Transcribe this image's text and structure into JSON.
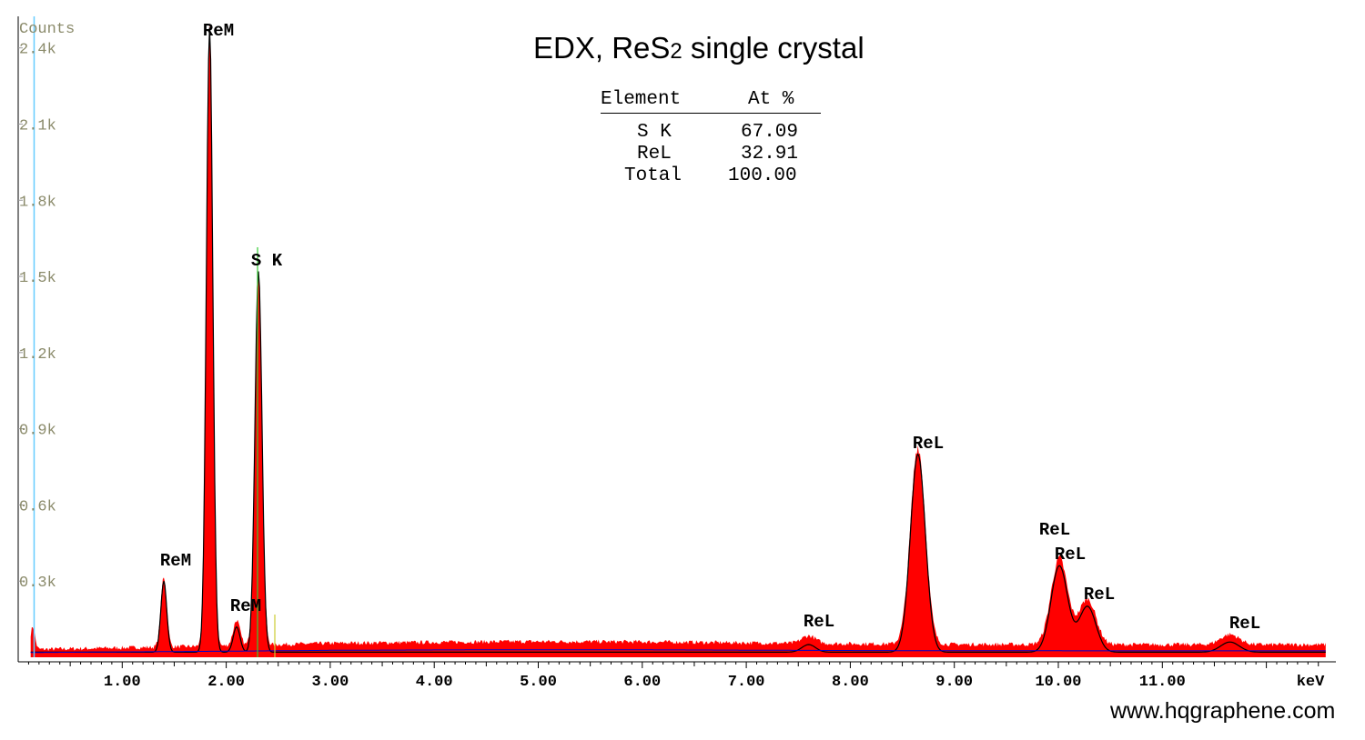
{
  "chart_data": {
    "type": "area",
    "title": "EDX, ReS",
    "title_subscript": "2",
    "title_suffix": " single crystal",
    "ylabel": "Counts",
    "xlabel": "keV",
    "x_range": [
      0.0,
      12.5
    ],
    "y_range": [
      0,
      2500
    ],
    "x_ticks": [
      "1.00",
      "2.00",
      "3.00",
      "4.00",
      "5.00",
      "6.00",
      "7.00",
      "8.00",
      "9.00",
      "10.00",
      "11.00"
    ],
    "y_ticks": [
      "0.3k",
      "0.6k",
      "0.9k",
      "1.2k",
      "1.5k",
      "1.8k",
      "2.1k",
      "2.4k"
    ],
    "colors": {
      "spectrum_fill": "#ff0000",
      "fit_line": "#000000",
      "background_line": "#0000cc",
      "axis": "#000000",
      "y_tick_text": "#8a8a6a",
      "cursor_line": "#66ccff",
      "marker_line": "#33cc33"
    },
    "peaks": [
      {
        "label": "ReM",
        "energy": 1.4,
        "counts": 320
      },
      {
        "label": "ReM",
        "energy": 1.84,
        "counts": 2500
      },
      {
        "label": "ReM",
        "energy": 2.1,
        "counts": 140
      },
      {
        "label": "S  K",
        "energy": 2.31,
        "counts": 1540
      },
      {
        "label": "ReL",
        "energy": 7.6,
        "counts": 70
      },
      {
        "label": "ReL",
        "energy": 8.65,
        "counts": 820
      },
      {
        "label": "ReL",
        "energy": 10.01,
        "counts": 380
      },
      {
        "label": "ReL",
        "energy": 10.01,
        "counts": 380
      },
      {
        "label": "ReL",
        "energy": 10.28,
        "counts": 220
      },
      {
        "label": "ReL",
        "energy": 11.65,
        "counts": 80
      }
    ],
    "background_level": 50
  },
  "results_table": {
    "headers": [
      "Element",
      "At %"
    ],
    "rows": [
      {
        "element": "S K",
        "value": "67.09"
      },
      {
        "element": "ReL",
        "value": "32.91"
      },
      {
        "element": "Total",
        "value": "100.00"
      }
    ]
  },
  "watermark": "www.hqgraphene.com"
}
